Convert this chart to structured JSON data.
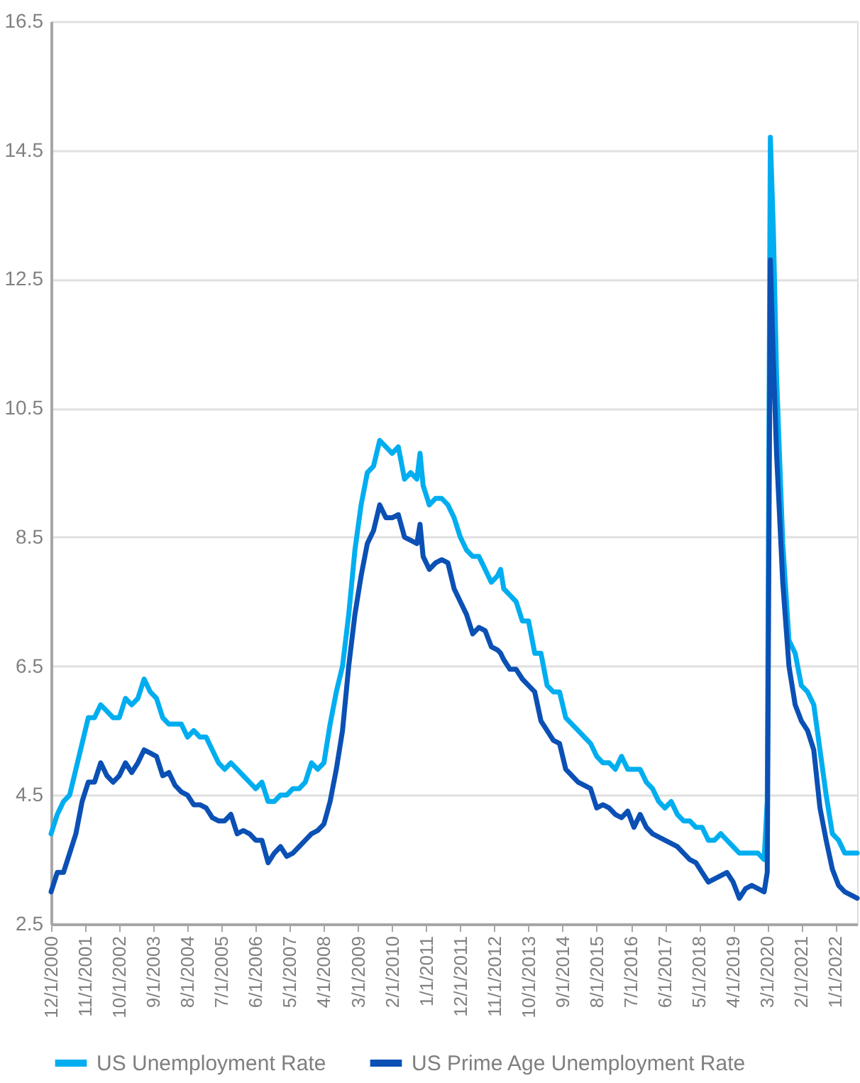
{
  "chart_data": {
    "type": "line",
    "x": [
      "2000-12",
      "2001-02",
      "2001-04",
      "2001-06",
      "2001-08",
      "2001-10",
      "2001-12",
      "2002-02",
      "2002-04",
      "2002-06",
      "2002-08",
      "2002-10",
      "2002-12",
      "2003-02",
      "2003-04",
      "2003-06",
      "2003-08",
      "2003-10",
      "2003-12",
      "2004-02",
      "2004-04",
      "2004-06",
      "2004-08",
      "2004-10",
      "2004-12",
      "2005-02",
      "2005-04",
      "2005-06",
      "2005-08",
      "2005-10",
      "2005-12",
      "2006-02",
      "2006-04",
      "2006-06",
      "2006-08",
      "2006-10",
      "2006-12",
      "2007-02",
      "2007-04",
      "2007-06",
      "2007-08",
      "2007-10",
      "2007-12",
      "2008-02",
      "2008-04",
      "2008-06",
      "2008-08",
      "2008-10",
      "2008-12",
      "2009-02",
      "2009-04",
      "2009-06",
      "2009-08",
      "2009-10",
      "2009-12",
      "2010-02",
      "2010-04",
      "2010-06",
      "2010-08",
      "2010-10",
      "2010-11",
      "2010-12",
      "2011-02",
      "2011-04",
      "2011-06",
      "2011-08",
      "2011-10",
      "2011-12",
      "2012-02",
      "2012-04",
      "2012-06",
      "2012-08",
      "2012-10",
      "2012-12",
      "2013-01",
      "2013-02",
      "2013-04",
      "2013-06",
      "2013-08",
      "2013-10",
      "2013-12",
      "2014-02",
      "2014-04",
      "2014-06",
      "2014-08",
      "2014-10",
      "2014-12",
      "2015-02",
      "2015-04",
      "2015-06",
      "2015-08",
      "2015-10",
      "2015-12",
      "2016-02",
      "2016-04",
      "2016-06",
      "2016-08",
      "2016-10",
      "2016-12",
      "2017-02",
      "2017-04",
      "2017-06",
      "2017-08",
      "2017-10",
      "2017-12",
      "2018-02",
      "2018-04",
      "2018-06",
      "2018-08",
      "2018-10",
      "2018-12",
      "2019-02",
      "2019-04",
      "2019-06",
      "2019-08",
      "2019-10",
      "2019-12",
      "2020-02",
      "2020-03",
      "2020-04",
      "2020-05",
      "2020-06",
      "2020-08",
      "2020-10",
      "2020-12",
      "2021-02",
      "2021-04",
      "2021-06",
      "2021-08",
      "2021-10",
      "2021-12",
      "2022-02",
      "2022-04",
      "2022-06",
      "2022-08"
    ],
    "series": [
      {
        "name": "US Unemployment Rate",
        "color": "#00aef0",
        "values": [
          3.9,
          4.2,
          4.4,
          4.5,
          4.9,
          5.3,
          5.7,
          5.7,
          5.9,
          5.8,
          5.7,
          5.7,
          6.0,
          5.9,
          6.0,
          6.3,
          6.1,
          6.0,
          5.7,
          5.6,
          5.6,
          5.6,
          5.4,
          5.5,
          5.4,
          5.4,
          5.2,
          5.0,
          4.9,
          5.0,
          4.9,
          4.8,
          4.7,
          4.6,
          4.7,
          4.4,
          4.4,
          4.5,
          4.5,
          4.6,
          4.6,
          4.7,
          5.0,
          4.9,
          5.0,
          5.6,
          6.1,
          6.5,
          7.3,
          8.3,
          9.0,
          9.5,
          9.6,
          10.0,
          9.9,
          9.8,
          9.9,
          9.4,
          9.5,
          9.4,
          9.8,
          9.3,
          9.0,
          9.1,
          9.1,
          9.0,
          8.8,
          8.5,
          8.3,
          8.2,
          8.2,
          8.0,
          7.8,
          7.9,
          8.0,
          7.7,
          7.6,
          7.5,
          7.2,
          7.2,
          6.7,
          6.7,
          6.2,
          6.1,
          6.1,
          5.7,
          5.6,
          5.5,
          5.4,
          5.3,
          5.1,
          5.0,
          5.0,
          4.9,
          5.1,
          4.9,
          4.9,
          4.9,
          4.7,
          4.6,
          4.4,
          4.3,
          4.4,
          4.2,
          4.1,
          4.1,
          4.0,
          4.0,
          3.8,
          3.8,
          3.9,
          3.8,
          3.7,
          3.6,
          3.6,
          3.6,
          3.6,
          3.5,
          4.4,
          14.7,
          13.2,
          11.0,
          8.4,
          6.9,
          6.7,
          6.2,
          6.1,
          5.9,
          5.2,
          4.5,
          3.9,
          3.8,
          3.6,
          3.6,
          3.6
        ]
      },
      {
        "name": "US Prime Age Unemployment Rate",
        "color": "#0b50b4",
        "values": [
          3.0,
          3.3,
          3.3,
          3.6,
          3.9,
          4.4,
          4.7,
          4.7,
          5.0,
          4.8,
          4.7,
          4.8,
          5.0,
          4.85,
          5.0,
          5.2,
          5.15,
          5.1,
          4.8,
          4.85,
          4.65,
          4.55,
          4.5,
          4.35,
          4.35,
          4.3,
          4.15,
          4.1,
          4.1,
          4.2,
          3.9,
          3.95,
          3.9,
          3.8,
          3.8,
          3.45,
          3.6,
          3.7,
          3.55,
          3.6,
          3.7,
          3.8,
          3.9,
          3.95,
          4.05,
          4.4,
          4.9,
          5.5,
          6.5,
          7.3,
          7.9,
          8.4,
          8.6,
          9.0,
          8.8,
          8.8,
          8.85,
          8.5,
          8.45,
          8.4,
          8.7,
          8.2,
          8.0,
          8.1,
          8.15,
          8.1,
          7.7,
          7.5,
          7.3,
          7.0,
          7.1,
          7.05,
          6.8,
          6.75,
          6.7,
          6.6,
          6.45,
          6.45,
          6.3,
          6.2,
          6.1,
          5.65,
          5.5,
          5.35,
          5.3,
          4.9,
          4.8,
          4.7,
          4.65,
          4.6,
          4.3,
          4.35,
          4.3,
          4.2,
          4.15,
          4.25,
          4.0,
          4.2,
          4.0,
          3.9,
          3.85,
          3.8,
          3.75,
          3.7,
          3.6,
          3.5,
          3.45,
          3.3,
          3.15,
          3.2,
          3.25,
          3.3,
          3.15,
          2.9,
          3.05,
          3.1,
          3.05,
          3.0,
          3.3,
          12.8,
          11.2,
          9.8,
          7.8,
          6.5,
          5.9,
          5.65,
          5.5,
          5.2,
          4.3,
          3.8,
          3.35,
          3.1,
          3.0,
          2.95,
          2.9
        ]
      }
    ],
    "xlim": [
      "2000-12",
      "2022-08"
    ],
    "xticks": [
      {
        "value": "2000-12",
        "label": "12/1/2000"
      },
      {
        "value": "2001-11",
        "label": "11/1/2001"
      },
      {
        "value": "2002-10",
        "label": "10/1/2002"
      },
      {
        "value": "2003-09",
        "label": "9/1/2003"
      },
      {
        "value": "2004-08",
        "label": "8/1/2004"
      },
      {
        "value": "2005-07",
        "label": "7/1/2005"
      },
      {
        "value": "2006-06",
        "label": "6/1/2006"
      },
      {
        "value": "2007-05",
        "label": "5/1/2007"
      },
      {
        "value": "2008-04",
        "label": "4/1/2008"
      },
      {
        "value": "2009-03",
        "label": "3/1/2009"
      },
      {
        "value": "2010-02",
        "label": "2/1/2010"
      },
      {
        "value": "2011-01",
        "label": "1/1/2011"
      },
      {
        "value": "2011-12",
        "label": "12/1/2011"
      },
      {
        "value": "2012-11",
        "label": "11/1/2012"
      },
      {
        "value": "2013-10",
        "label": "10/1/2013"
      },
      {
        "value": "2014-09",
        "label": "9/1/2014"
      },
      {
        "value": "2015-08",
        "label": "8/1/2015"
      },
      {
        "value": "2016-07",
        "label": "7/1/2016"
      },
      {
        "value": "2017-06",
        "label": "6/1/2017"
      },
      {
        "value": "2018-05",
        "label": "5/1/2018"
      },
      {
        "value": "2019-04",
        "label": "4/1/2019"
      },
      {
        "value": "2020-03",
        "label": "3/1/2020"
      },
      {
        "value": "2021-02",
        "label": "2/1/2021"
      },
      {
        "value": "2022-01",
        "label": "1/1/2022"
      }
    ],
    "ylim": [
      2.5,
      16.5
    ],
    "yticks": [
      2.5,
      4.5,
      6.5,
      8.5,
      10.5,
      12.5,
      14.5,
      16.5
    ],
    "grid": "y",
    "legend": "bottom"
  }
}
